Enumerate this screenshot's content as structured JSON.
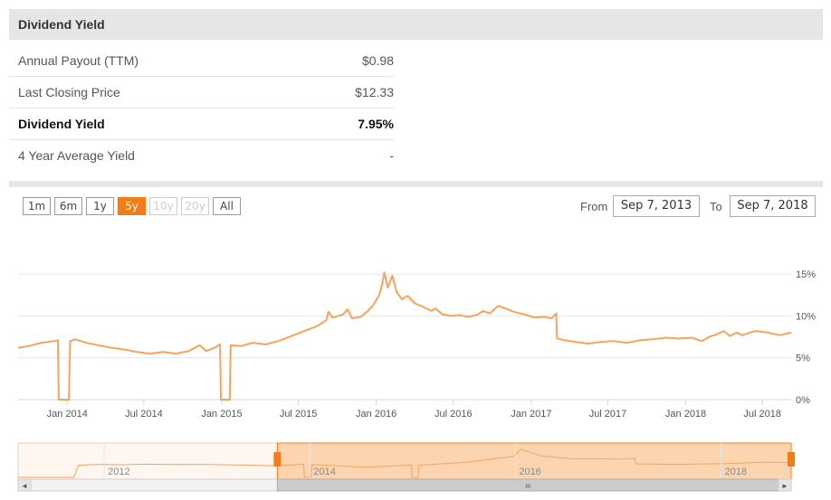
{
  "header": {
    "title": "Dividend Yield"
  },
  "table": [
    {
      "label": "Annual Payout (TTM)",
      "value": "$0.98",
      "bold": false
    },
    {
      "label": "Last Closing Price",
      "value": "$12.33",
      "bold": false
    },
    {
      "label": "Dividend Yield",
      "value": "7.95%",
      "bold": true
    },
    {
      "label": "4 Year Average Yield",
      "value": "-",
      "bold": false
    }
  ],
  "range_buttons": [
    {
      "label": "1m",
      "state": "normal"
    },
    {
      "label": "6m",
      "state": "normal"
    },
    {
      "label": "1y",
      "state": "normal"
    },
    {
      "label": "5y",
      "state": "active"
    },
    {
      "label": "10y",
      "state": "disabled"
    },
    {
      "label": "20y",
      "state": "disabled"
    },
    {
      "label": "All",
      "state": "normal"
    }
  ],
  "date_range": {
    "from_label": "From",
    "from_value": "Sep 7, 2013",
    "to_label": "To",
    "to_value": "Sep 7, 2018"
  },
  "colors": {
    "series": "#f7a35c",
    "accent": "#f07d1a",
    "navigator_fill": "#fcd5b0",
    "grid": "#e6e6e6"
  },
  "chart_data": {
    "type": "line",
    "ylim": [
      0,
      17.5
    ],
    "xlim": [
      "2013-09-07",
      "2018-09-07"
    ],
    "y_ticks": [
      0,
      5,
      10,
      15
    ],
    "y_tick_labels": [
      "0%",
      "5%",
      "10%",
      "15%"
    ],
    "x_ticks": [
      "2014-01-01",
      "2014-07-01",
      "2015-01-01",
      "2015-07-01",
      "2016-01-01",
      "2016-07-01",
      "2017-01-01",
      "2017-07-01",
      "2018-01-01",
      "2018-07-01"
    ],
    "x_tick_labels": [
      "Jan 2014",
      "Jul 2014",
      "Jan 2015",
      "Jul 2015",
      "Jan 2016",
      "Jul 2016",
      "Jan 2017",
      "Jul 2017",
      "Jan 2018",
      "Jul 2018"
    ],
    "series": [
      {
        "points": [
          [
            "2013-09-07",
            6.2
          ],
          [
            "2013-10-01",
            6.4
          ],
          [
            "2013-11-01",
            6.8
          ],
          [
            "2013-12-01",
            7.0
          ],
          [
            "2013-12-10",
            7.1
          ],
          [
            "2013-12-12",
            0
          ],
          [
            "2014-01-01",
            0
          ],
          [
            "2014-01-05",
            0
          ],
          [
            "2014-01-08",
            7.0
          ],
          [
            "2014-01-20",
            7.2
          ],
          [
            "2014-02-15",
            6.8
          ],
          [
            "2014-03-15",
            6.5
          ],
          [
            "2014-04-15",
            6.2
          ],
          [
            "2014-05-15",
            6.0
          ],
          [
            "2014-06-15",
            5.7
          ],
          [
            "2014-07-15",
            5.5
          ],
          [
            "2014-08-15",
            5.7
          ],
          [
            "2014-09-15",
            5.5
          ],
          [
            "2014-10-15",
            5.8
          ],
          [
            "2014-11-10",
            6.5
          ],
          [
            "2014-11-25",
            5.8
          ],
          [
            "2014-12-15",
            6.2
          ],
          [
            "2014-12-28",
            6.6
          ],
          [
            "2014-12-30",
            0
          ],
          [
            "2015-01-20",
            0
          ],
          [
            "2015-01-22",
            6.5
          ],
          [
            "2015-02-15",
            6.4
          ],
          [
            "2015-03-15",
            6.8
          ],
          [
            "2015-04-15",
            6.6
          ],
          [
            "2015-05-15",
            7.0
          ],
          [
            "2015-06-15",
            7.6
          ],
          [
            "2015-07-15",
            8.2
          ],
          [
            "2015-08-15",
            8.8
          ],
          [
            "2015-09-05",
            9.5
          ],
          [
            "2015-09-10",
            10.5
          ],
          [
            "2015-09-20",
            9.8
          ],
          [
            "2015-10-15",
            10.2
          ],
          [
            "2015-10-25",
            10.8
          ],
          [
            "2015-11-05",
            9.7
          ],
          [
            "2015-11-25",
            9.9
          ],
          [
            "2015-12-10",
            10.5
          ],
          [
            "2015-12-25",
            11.3
          ],
          [
            "2016-01-08",
            12.5
          ],
          [
            "2016-01-15",
            13.8
          ],
          [
            "2016-01-20",
            15.2
          ],
          [
            "2016-01-28",
            13.4
          ],
          [
            "2016-02-08",
            14.8
          ],
          [
            "2016-02-18",
            12.9
          ],
          [
            "2016-03-01",
            12.0
          ],
          [
            "2016-03-15",
            12.4
          ],
          [
            "2016-04-01",
            11.5
          ],
          [
            "2016-04-20",
            11.1
          ],
          [
            "2016-05-10",
            10.6
          ],
          [
            "2016-05-20",
            10.9
          ],
          [
            "2016-06-05",
            10.2
          ],
          [
            "2016-06-25",
            10.0
          ],
          [
            "2016-07-15",
            10.1
          ],
          [
            "2016-08-05",
            9.9
          ],
          [
            "2016-08-25",
            10.1
          ],
          [
            "2016-09-10",
            10.6
          ],
          [
            "2016-09-25",
            10.3
          ],
          [
            "2016-10-15",
            11.2
          ],
          [
            "2016-11-01",
            10.9
          ],
          [
            "2016-11-20",
            10.5
          ],
          [
            "2016-12-15",
            10.2
          ],
          [
            "2017-01-10",
            9.8
          ],
          [
            "2017-02-01",
            9.9
          ],
          [
            "2017-02-18",
            9.7
          ],
          [
            "2017-03-01",
            10.3
          ],
          [
            "2017-03-03",
            7.3
          ],
          [
            "2017-03-20",
            7.1
          ],
          [
            "2017-04-15",
            6.9
          ],
          [
            "2017-05-15",
            6.7
          ],
          [
            "2017-06-15",
            6.9
          ],
          [
            "2017-07-15",
            7.0
          ],
          [
            "2017-08-15",
            6.8
          ],
          [
            "2017-09-15",
            7.1
          ],
          [
            "2017-10-15",
            7.2
          ],
          [
            "2017-11-15",
            7.4
          ],
          [
            "2017-12-15",
            7.3
          ],
          [
            "2018-01-15",
            7.4
          ],
          [
            "2018-02-08",
            7.0
          ],
          [
            "2018-02-25",
            7.5
          ],
          [
            "2018-03-15",
            7.8
          ],
          [
            "2018-04-01",
            8.2
          ],
          [
            "2018-04-15",
            7.6
          ],
          [
            "2018-05-01",
            8.0
          ],
          [
            "2018-05-15",
            7.7
          ],
          [
            "2018-06-01",
            8.0
          ],
          [
            "2018-06-15",
            8.2
          ],
          [
            "2018-07-15",
            8.0
          ],
          [
            "2018-08-10",
            7.7
          ],
          [
            "2018-09-07",
            8.0
          ]
        ]
      }
    ]
  },
  "navigator": {
    "labels": [
      "2012",
      "2014",
      "2016",
      "2018"
    ],
    "label_dates": [
      "2012-01-01",
      "2014-01-01",
      "2016-01-01",
      "2018-01-01"
    ],
    "start": "2011-03-01",
    "end": "2018-09-07",
    "selected": [
      "2013-09-07",
      "2018-09-07"
    ],
    "points": [
      [
        "2011-03-01",
        0
      ],
      [
        "2011-09-15",
        0
      ],
      [
        "2011-10-01",
        6.5
      ],
      [
        "2011-12-01",
        7.0
      ],
      [
        "2012-03-01",
        6.8
      ],
      [
        "2012-06-01",
        7.1
      ],
      [
        "2012-09-01",
        6.9
      ],
      [
        "2012-12-01",
        7.0
      ],
      [
        "2013-03-01",
        6.8
      ],
      [
        "2013-06-01",
        6.6
      ],
      [
        "2013-09-07",
        6.2
      ],
      [
        "2013-12-10",
        7.1
      ],
      [
        "2013-12-12",
        0
      ],
      [
        "2014-01-05",
        0
      ],
      [
        "2014-01-08",
        7.0
      ],
      [
        "2014-07-15",
        5.5
      ],
      [
        "2014-12-28",
        6.6
      ],
      [
        "2014-12-30",
        0
      ],
      [
        "2015-01-20",
        0
      ],
      [
        "2015-01-22",
        6.5
      ],
      [
        "2015-07-15",
        8.2
      ],
      [
        "2015-12-25",
        11.3
      ],
      [
        "2016-01-20",
        15.2
      ],
      [
        "2016-04-01",
        11.5
      ],
      [
        "2016-07-15",
        10.1
      ],
      [
        "2017-01-10",
        9.8
      ],
      [
        "2017-03-01",
        10.3
      ],
      [
        "2017-03-03",
        7.3
      ],
      [
        "2017-07-15",
        7.0
      ],
      [
        "2018-01-15",
        7.4
      ],
      [
        "2018-06-15",
        8.2
      ],
      [
        "2018-09-07",
        8.0
      ]
    ]
  },
  "scrollbar": {
    "left_arrow": "◄",
    "right_arrow": "►",
    "grip": "III"
  }
}
